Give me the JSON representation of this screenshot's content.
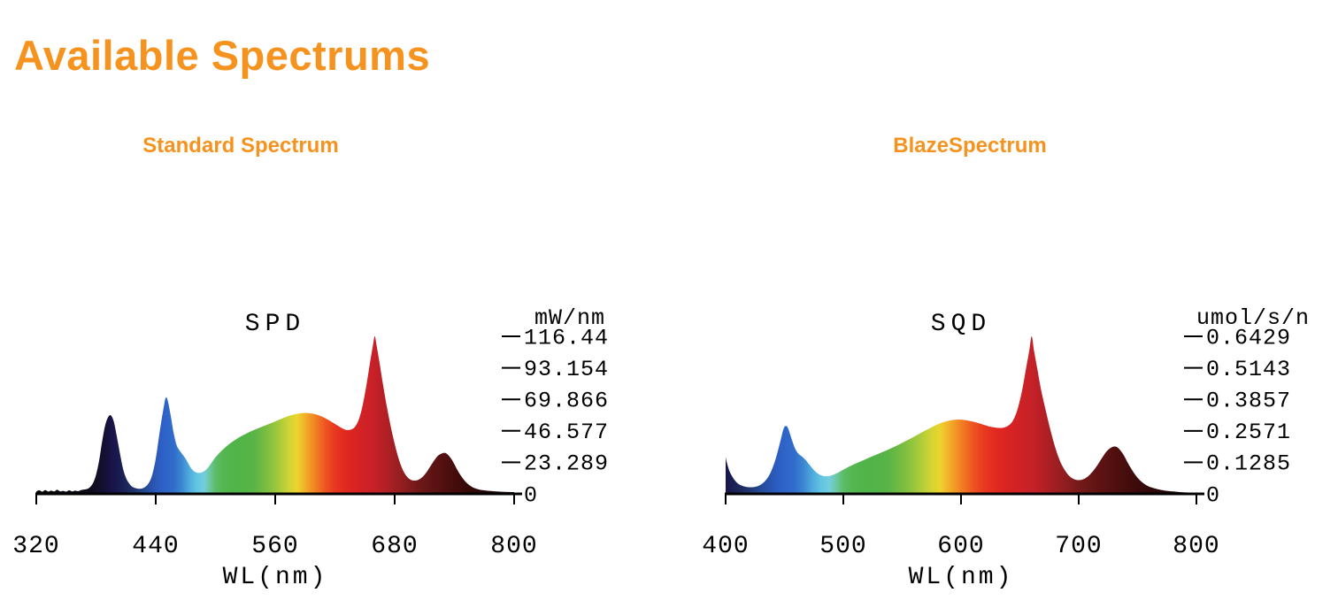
{
  "page": {
    "title": "Available Spectrums",
    "accent_color": "#F6921E",
    "background_color": "#FFFFFF",
    "text_color": "#000000"
  },
  "chart_data": {
    "type": "area",
    "description": "Two LED grow-light spectral power distribution curves filled with wavelength rainbow gradient",
    "legend_position": "none",
    "grid": false,
    "spectrum_colors": [
      [
        320,
        "#060508"
      ],
      [
        355,
        "#0a0810"
      ],
      [
        375,
        "#0e0b1c"
      ],
      [
        388,
        "#141031"
      ],
      [
        396,
        "#181447"
      ],
      [
        404,
        "#1a1c52"
      ],
      [
        412,
        "#1d285e"
      ],
      [
        420,
        "#203570"
      ],
      [
        430,
        "#254a96"
      ],
      [
        440,
        "#2a58b8"
      ],
      [
        448,
        "#2e62c8"
      ],
      [
        458,
        "#306cca"
      ],
      [
        466,
        "#3c86d2"
      ],
      [
        474,
        "#50acdc"
      ],
      [
        481,
        "#62c4e4"
      ],
      [
        488,
        "#72cede"
      ],
      [
        494,
        "#6cc8a2"
      ],
      [
        500,
        "#5cbc66"
      ],
      [
        508,
        "#54b650"
      ],
      [
        520,
        "#50b448"
      ],
      [
        538,
        "#58b446"
      ],
      [
        552,
        "#7cbe40"
      ],
      [
        564,
        "#a6ca3a"
      ],
      [
        574,
        "#d0d434"
      ],
      [
        582,
        "#ecd42e"
      ],
      [
        589,
        "#f2b428"
      ],
      [
        596,
        "#f29424"
      ],
      [
        603,
        "#f07422"
      ],
      [
        611,
        "#ee5220"
      ],
      [
        620,
        "#e83820"
      ],
      [
        632,
        "#e02620"
      ],
      [
        645,
        "#d42224"
      ],
      [
        658,
        "#c82128"
      ],
      [
        668,
        "#b82026"
      ],
      [
        680,
        "#a01f22"
      ],
      [
        692,
        "#881c1e"
      ],
      [
        704,
        "#701818"
      ],
      [
        716,
        "#601314"
      ],
      [
        728,
        "#541010"
      ],
      [
        742,
        "#440c0c"
      ],
      [
        756,
        "#340909"
      ],
      [
        772,
        "#260606"
      ],
      [
        800,
        "#170304"
      ]
    ],
    "charts": [
      {
        "heading": "Standard Spectrum",
        "title": "SPD",
        "y_unit": "mW/nm",
        "x_label": "WL(nm)",
        "x_min": 320,
        "x_max": 800,
        "y_min": 0,
        "y_max": 116.44,
        "x_ticks": [
          "320",
          "440",
          "560",
          "680",
          "800"
        ],
        "x_tick_values": [
          320,
          440,
          560,
          680,
          800
        ],
        "y_tick_labels": [
          "116.44",
          "93.154",
          "69.866",
          "46.577",
          "23.289",
          "0"
        ],
        "y_tick_values": [
          116.44,
          93.154,
          69.866,
          46.577,
          23.289,
          0
        ],
        "points": [
          [
            320,
            1.8
          ],
          [
            323,
            2.6
          ],
          [
            326,
            1.6
          ],
          [
            329,
            2.8
          ],
          [
            332,
            1.7
          ],
          [
            335,
            2.4
          ],
          [
            338,
            1.8
          ],
          [
            341,
            3.0
          ],
          [
            344,
            1.8
          ],
          [
            347,
            2.2
          ],
          [
            350,
            1.6
          ],
          [
            353,
            2.6
          ],
          [
            356,
            1.8
          ],
          [
            359,
            2.4
          ],
          [
            362,
            2.0
          ],
          [
            365,
            2.8
          ],
          [
            368,
            3.2
          ],
          [
            371,
            3.6
          ],
          [
            374,
            5
          ],
          [
            377,
            8
          ],
          [
            380,
            14
          ],
          [
            383,
            24
          ],
          [
            386,
            38
          ],
          [
            389,
            50
          ],
          [
            392,
            56.5
          ],
          [
            395,
            58
          ],
          [
            398,
            53
          ],
          [
            401,
            42
          ],
          [
            404,
            30
          ],
          [
            407,
            19
          ],
          [
            410,
            12
          ],
          [
            413,
            8
          ],
          [
            416,
            5.5
          ],
          [
            420,
            4.2
          ],
          [
            424,
            3.8
          ],
          [
            428,
            4.5
          ],
          [
            432,
            7
          ],
          [
            436,
            13
          ],
          [
            440,
            26
          ],
          [
            444,
            46
          ],
          [
            448,
            64
          ],
          [
            450,
            71
          ],
          [
            452,
            69
          ],
          [
            455,
            58
          ],
          [
            458,
            45
          ],
          [
            461,
            36
          ],
          [
            464,
            32
          ],
          [
            467,
            29
          ],
          [
            470,
            26
          ],
          [
            473,
            22
          ],
          [
            476,
            18.5
          ],
          [
            480,
            16
          ],
          [
            484,
            15.5
          ],
          [
            488,
            16.5
          ],
          [
            492,
            19
          ],
          [
            496,
            23
          ],
          [
            500,
            27
          ],
          [
            505,
            31
          ],
          [
            510,
            34.5
          ],
          [
            515,
            37.5
          ],
          [
            520,
            40
          ],
          [
            526,
            42.7
          ],
          [
            532,
            45
          ],
          [
            538,
            47
          ],
          [
            544,
            48.8
          ],
          [
            550,
            50.5
          ],
          [
            556,
            52.3
          ],
          [
            562,
            54.2
          ],
          [
            568,
            56
          ],
          [
            574,
            57.7
          ],
          [
            580,
            58.9
          ],
          [
            586,
            59.6
          ],
          [
            592,
            59.8
          ],
          [
            598,
            59.2
          ],
          [
            604,
            58
          ],
          [
            610,
            56
          ],
          [
            616,
            53.5
          ],
          [
            622,
            50.8
          ],
          [
            628,
            48.2
          ],
          [
            632,
            47.2
          ],
          [
            636,
            47.5
          ],
          [
            640,
            49.5
          ],
          [
            644,
            55
          ],
          [
            648,
            66
          ],
          [
            652,
            82
          ],
          [
            655,
            96
          ],
          [
            658,
            109
          ],
          [
            660,
            116.4
          ],
          [
            662,
            109
          ],
          [
            665,
            96
          ],
          [
            668,
            82
          ],
          [
            672,
            65
          ],
          [
            676,
            50
          ],
          [
            680,
            37
          ],
          [
            684,
            26
          ],
          [
            688,
            18
          ],
          [
            692,
            13
          ],
          [
            696,
            10.5
          ],
          [
            700,
            9.8
          ],
          [
            704,
            10.5
          ],
          [
            708,
            12.5
          ],
          [
            712,
            16
          ],
          [
            716,
            20.5
          ],
          [
            720,
            25
          ],
          [
            724,
            28.5
          ],
          [
            728,
            30
          ],
          [
            731,
            30.2
          ],
          [
            734,
            28.5
          ],
          [
            738,
            24.5
          ],
          [
            742,
            19
          ],
          [
            746,
            14
          ],
          [
            750,
            10
          ],
          [
            754,
            7
          ],
          [
            758,
            5
          ],
          [
            762,
            3.8
          ],
          [
            768,
            2.8
          ],
          [
            775,
            2.2
          ],
          [
            782,
            1.8
          ],
          [
            790,
            1.5
          ],
          [
            800,
            1.3
          ]
        ]
      },
      {
        "heading": "BlazeSpectrum",
        "title": "SQD",
        "y_unit": "umol/s/n",
        "x_label": "WL(nm)",
        "x_min": 400,
        "x_max": 800,
        "y_min": 0,
        "y_max": 0.6429,
        "x_ticks": [
          "400",
          "500",
          "600",
          "700",
          "800"
        ],
        "x_tick_values": [
          400,
          500,
          600,
          700,
          800
        ],
        "y_tick_labels": [
          "0.6429",
          "0.5143",
          "0.3857",
          "0.2571",
          "0.1285",
          "0"
        ],
        "y_tick_values": [
          0.6429,
          0.5143,
          0.3857,
          0.2571,
          0.1285,
          0
        ],
        "points": [
          [
            400,
            0.15
          ],
          [
            401,
            0.128
          ],
          [
            403,
            0.096
          ],
          [
            405,
            0.076
          ],
          [
            408,
            0.054
          ],
          [
            411,
            0.04
          ],
          [
            414,
            0.033
          ],
          [
            418,
            0.028
          ],
          [
            422,
            0.027
          ],
          [
            426,
            0.03
          ],
          [
            430,
            0.038
          ],
          [
            434,
            0.055
          ],
          [
            438,
            0.085
          ],
          [
            442,
            0.135
          ],
          [
            446,
            0.205
          ],
          [
            449,
            0.262
          ],
          [
            451,
            0.277
          ],
          [
            453,
            0.268
          ],
          [
            456,
            0.225
          ],
          [
            459,
            0.185
          ],
          [
            462,
            0.163
          ],
          [
            465,
            0.152
          ],
          [
            468,
            0.138
          ],
          [
            471,
            0.12
          ],
          [
            474,
            0.103
          ],
          [
            477,
            0.088
          ],
          [
            480,
            0.078
          ],
          [
            484,
            0.072
          ],
          [
            488,
            0.073
          ],
          [
            492,
            0.079
          ],
          [
            496,
            0.088
          ],
          [
            500,
            0.099
          ],
          [
            506,
            0.114
          ],
          [
            512,
            0.127
          ],
          [
            518,
            0.139
          ],
          [
            524,
            0.152
          ],
          [
            530,
            0.164
          ],
          [
            536,
            0.176
          ],
          [
            542,
            0.189
          ],
          [
            548,
            0.203
          ],
          [
            554,
            0.218
          ],
          [
            560,
            0.233
          ],
          [
            566,
            0.249
          ],
          [
            572,
            0.264
          ],
          [
            578,
            0.279
          ],
          [
            584,
            0.291
          ],
          [
            590,
            0.299
          ],
          [
            596,
            0.303
          ],
          [
            602,
            0.302
          ],
          [
            608,
            0.297
          ],
          [
            614,
            0.29
          ],
          [
            620,
            0.281
          ],
          [
            626,
            0.273
          ],
          [
            632,
            0.269
          ],
          [
            636,
            0.27
          ],
          [
            640,
            0.278
          ],
          [
            644,
            0.298
          ],
          [
            648,
            0.345
          ],
          [
            652,
            0.425
          ],
          [
            655,
            0.505
          ],
          [
            658,
            0.585
          ],
          [
            660,
            0.643
          ],
          [
            662,
            0.585
          ],
          [
            665,
            0.505
          ],
          [
            668,
            0.425
          ],
          [
            672,
            0.34
          ],
          [
            676,
            0.26
          ],
          [
            680,
            0.19
          ],
          [
            684,
            0.135
          ],
          [
            688,
            0.098
          ],
          [
            692,
            0.073
          ],
          [
            696,
            0.06
          ],
          [
            700,
            0.056
          ],
          [
            704,
            0.06
          ],
          [
            708,
            0.072
          ],
          [
            712,
            0.092
          ],
          [
            716,
            0.118
          ],
          [
            720,
            0.148
          ],
          [
            724,
            0.175
          ],
          [
            728,
            0.19
          ],
          [
            731,
            0.193
          ],
          [
            734,
            0.185
          ],
          [
            738,
            0.16
          ],
          [
            742,
            0.124
          ],
          [
            746,
            0.092
          ],
          [
            750,
            0.066
          ],
          [
            754,
            0.047
          ],
          [
            758,
            0.034
          ],
          [
            762,
            0.026
          ],
          [
            768,
            0.018
          ],
          [
            775,
            0.012
          ],
          [
            782,
            0.009
          ],
          [
            790,
            0.006
          ],
          [
            800,
            0.005
          ]
        ]
      }
    ]
  }
}
